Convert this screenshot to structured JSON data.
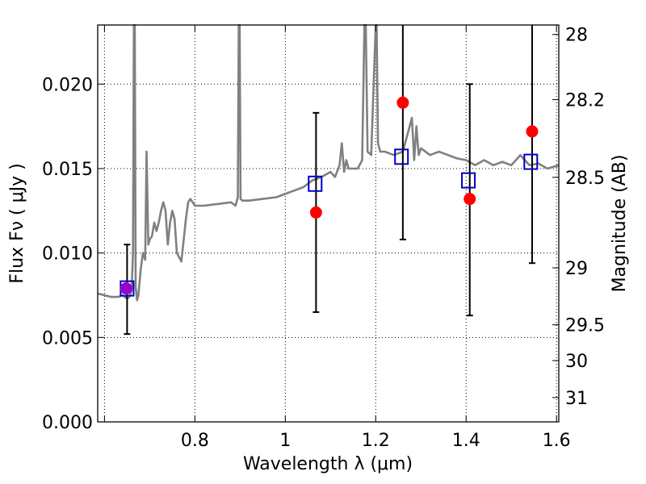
{
  "chart_data": {
    "type": "scatter",
    "xlabel": "Wavelength  λ (μm)",
    "ylabel": "Flux  Fν  ( μJy )",
    "y2label": "Magnitude (AB)",
    "xlim": [
      0.585,
      1.605
    ],
    "ylim": [
      0.0,
      0.0235
    ],
    "x_ticks": [
      0.6,
      0.8,
      1.0,
      1.2,
      1.4,
      1.6
    ],
    "x_tick_labels": [
      "",
      "0.8",
      "1",
      "1.2",
      "1.4",
      "1.6"
    ],
    "y_ticks": [
      0.0,
      0.005,
      0.01,
      0.015,
      0.02
    ],
    "y_tick_labels": [
      "0.000",
      "0.005",
      "0.010",
      "0.015",
      "0.020"
    ],
    "y2_ticks": [
      {
        "label": "28",
        "flux": 0.02294
      },
      {
        "label": "28.2",
        "flux": 0.01908
      },
      {
        "label": "28.5",
        "flux": 0.01448
      },
      {
        "label": "29",
        "flux": 0.00912
      },
      {
        "label": "29.5",
        "flux": 0.00575
      },
      {
        "label": "30",
        "flux": 0.00363
      },
      {
        "label": "31",
        "flux": 0.00144
      }
    ],
    "grid": true,
    "series": [
      {
        "kind": "model-spectrum",
        "color": "#808080",
        "x": [
          0.585,
          0.6,
          0.615,
          0.63,
          0.64,
          0.65,
          0.655,
          0.66,
          0.663,
          0.665,
          0.667,
          0.669,
          0.672,
          0.675,
          0.68,
          0.685,
          0.69,
          0.693,
          0.697,
          0.7,
          0.705,
          0.71,
          0.715,
          0.72,
          0.725,
          0.73,
          0.735,
          0.74,
          0.745,
          0.75,
          0.755,
          0.76,
          0.77,
          0.78,
          0.785,
          0.79,
          0.8,
          0.82,
          0.85,
          0.88,
          0.89,
          0.895,
          0.897,
          0.899,
          0.901,
          0.905,
          0.92,
          0.95,
          0.98,
          1.0,
          1.02,
          1.04,
          1.06,
          1.08,
          1.1,
          1.11,
          1.12,
          1.125,
          1.13,
          1.135,
          1.14,
          1.16,
          1.17,
          1.175,
          1.178,
          1.182,
          1.19,
          1.2,
          1.202,
          1.205,
          1.21,
          1.22,
          1.24,
          1.26,
          1.28,
          1.285,
          1.29,
          1.295,
          1.3,
          1.32,
          1.34,
          1.36,
          1.38,
          1.4,
          1.42,
          1.44,
          1.46,
          1.48,
          1.5,
          1.52,
          1.54,
          1.56,
          1.58,
          1.605
        ],
        "y": [
          0.0076,
          0.0075,
          0.0074,
          0.0074,
          0.0075,
          0.0073,
          0.0074,
          0.0078,
          0.01,
          0.024,
          0.024,
          0.008,
          0.0072,
          0.0075,
          0.009,
          0.01,
          0.0096,
          0.016,
          0.0105,
          0.0108,
          0.011,
          0.0118,
          0.0113,
          0.0118,
          0.0125,
          0.013,
          0.0125,
          0.0105,
          0.0118,
          0.0125,
          0.012,
          0.01,
          0.0095,
          0.012,
          0.013,
          0.0132,
          0.0128,
          0.0128,
          0.0129,
          0.013,
          0.0128,
          0.0133,
          0.024,
          0.024,
          0.0132,
          0.0131,
          0.0131,
          0.0132,
          0.0133,
          0.0135,
          0.0137,
          0.0139,
          0.0143,
          0.0145,
          0.0148,
          0.0145,
          0.0152,
          0.0165,
          0.0148,
          0.0155,
          0.015,
          0.015,
          0.0155,
          0.024,
          0.024,
          0.016,
          0.0158,
          0.024,
          0.024,
          0.0165,
          0.016,
          0.016,
          0.0158,
          0.016,
          0.018,
          0.0155,
          0.0175,
          0.0158,
          0.0162,
          0.0158,
          0.016,
          0.0158,
          0.0156,
          0.0155,
          0.0152,
          0.0155,
          0.0152,
          0.0154,
          0.0152,
          0.0158,
          0.0152,
          0.0153,
          0.015,
          0.0152
        ]
      },
      {
        "kind": "observed",
        "color": "#ff0000",
        "x": [
          0.648,
          1.068,
          1.26,
          1.408,
          1.546
        ],
        "y": [
          0.0079,
          0.0124,
          0.0189,
          0.0132,
          0.0172
        ]
      },
      {
        "kind": "synthetic",
        "color": "#0000cc",
        "x": [
          0.65,
          1.066,
          1.257,
          1.405,
          1.543
        ],
        "y": [
          0.0079,
          0.0141,
          0.0157,
          0.0143,
          0.0154
        ]
      },
      {
        "kind": "errorbars",
        "color": "#000000",
        "x": [
          0.65,
          1.068,
          1.26,
          1.408,
          1.546
        ],
        "ylow": [
          0.0052,
          0.0065,
          0.0108,
          0.0063,
          0.0094
        ],
        "yhigh": [
          0.0105,
          0.0183,
          0.024,
          0.02,
          0.024
        ]
      }
    ]
  }
}
